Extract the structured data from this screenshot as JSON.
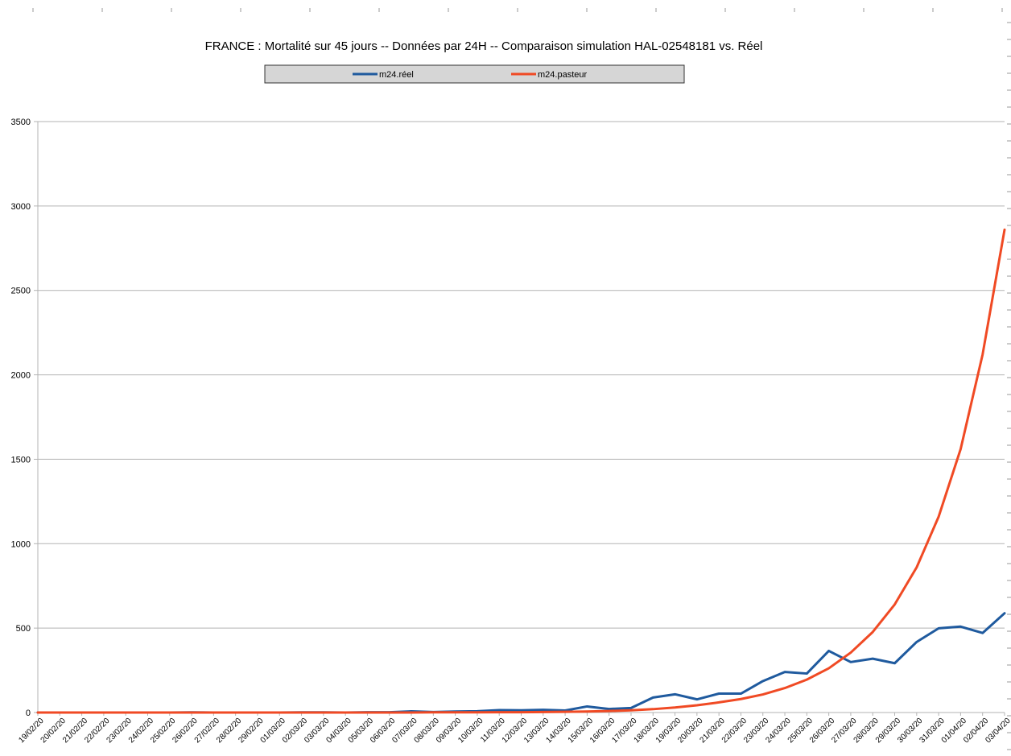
{
  "chart_data": {
    "type": "line",
    "title": "FRANCE : Mortalité sur 45 jours -- Données par 24H -- Comparaison simulation HAL-02548181 vs. Réel",
    "xlabel": "",
    "ylabel": "",
    "ylim": [
      0,
      3500
    ],
    "yticks": [
      "0",
      "500",
      "1000",
      "1500",
      "2000",
      "2500",
      "3000",
      "3500"
    ],
    "grid": true,
    "legend_position": "top-center",
    "categories": [
      "19/02/20",
      "20/02/20",
      "21/02/20",
      "22/02/20",
      "23/02/20",
      "24/02/20",
      "25/02/20",
      "26/02/20",
      "27/02/20",
      "28/02/20",
      "29/02/20",
      "01/03/20",
      "02/03/20",
      "03/03/20",
      "04/03/20",
      "05/03/20",
      "06/03/20",
      "07/03/20",
      "08/03/20",
      "09/03/20",
      "10/03/20",
      "11/03/20",
      "12/03/20",
      "13/03/20",
      "14/03/20",
      "15/03/20",
      "16/03/20",
      "17/03/20",
      "18/03/20",
      "19/03/20",
      "20/03/20",
      "21/03/20",
      "22/03/20",
      "23/03/20",
      "24/03/20",
      "25/03/20",
      "26/03/20",
      "27/03/20",
      "28/03/20",
      "29/03/20",
      "30/03/20",
      "31/03/20",
      "01/04/20",
      "02/04/20",
      "03/04/20"
    ],
    "series": [
      {
        "name": "m24.réel",
        "color": "#1f5a9e",
        "values": [
          0,
          0,
          0,
          0,
          0,
          0,
          0,
          1,
          0,
          0,
          0,
          0,
          1,
          1,
          0,
          2,
          2,
          7,
          3,
          6,
          8,
          14,
          13,
          16,
          12,
          36,
          21,
          27,
          89,
          108,
          78,
          112,
          112,
          186,
          240,
          231,
          365,
          299,
          319,
          292,
          418,
          499,
          509,
          471,
          588
        ]
      },
      {
        "name": "m24.pasteur",
        "color": "#f04a24",
        "values": [
          0,
          0,
          0,
          0,
          0,
          0,
          0,
          0,
          0,
          0,
          0,
          0,
          0,
          0,
          0,
          0,
          0,
          0,
          1,
          1,
          1,
          2,
          2,
          3,
          4,
          6,
          9,
          13,
          20,
          30,
          43,
          60,
          80,
          107,
          145,
          195,
          262,
          355,
          477,
          640,
          860,
          1160,
          1560,
          2120,
          2860
        ]
      }
    ]
  }
}
